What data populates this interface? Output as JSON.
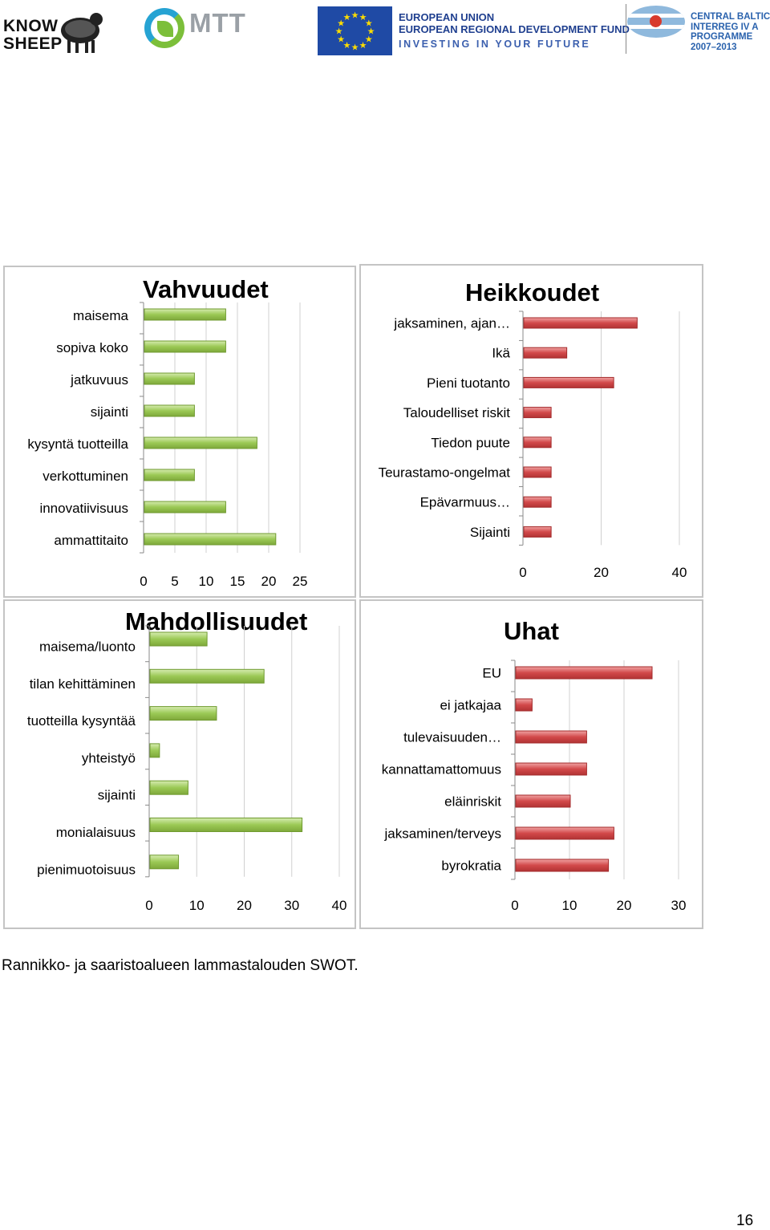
{
  "header": {
    "knowsheep": {
      "line1": "KNOW",
      "line2": "SHEEP"
    },
    "mtt": "MTT",
    "eu": {
      "line1": "EUROPEAN UNION",
      "line2": "EUROPEAN REGIONAL DEVELOPMENT FUND",
      "line3": "INVESTING IN YOUR FUTURE"
    },
    "cb": {
      "line1": "CENTRAL BALTIC",
      "line2": "INTERREG IV A",
      "line3": "PROGRAMME",
      "line4": "2007–2013"
    }
  },
  "colors": {
    "green_bar": "#9bc955",
    "green_edge": "#6f9a2f",
    "red_bar": "#d2494a",
    "red_edge": "#a32a2b"
  },
  "chart_data": [
    {
      "id": "vahvuudet",
      "type": "bar",
      "orientation": "horizontal",
      "title": "Vahvuudet",
      "categories": [
        "maisema",
        "sopiva koko",
        "jatkuvuus",
        "sijainti",
        "kysyntä tuotteilla",
        "verkottuminen",
        "innovatiivisuus",
        "ammattitaito"
      ],
      "values": [
        13,
        13,
        8,
        8,
        18,
        8,
        13,
        21
      ],
      "xlim": [
        0,
        25
      ],
      "xticks": [
        0,
        5,
        10,
        15,
        20,
        25
      ],
      "color": "#9bc955"
    },
    {
      "id": "heikkoudet",
      "type": "bar",
      "orientation": "horizontal",
      "title": "Heikkoudet",
      "categories": [
        "jaksaminen, ajan…",
        "Ikä",
        "Pieni tuotanto",
        "Taloudelliset riskit",
        "Tiedon puute",
        "Teurastamo-ongelmat",
        "Epävarmuus…",
        "Sijainti"
      ],
      "values": [
        29,
        11,
        23,
        7,
        7,
        7,
        7,
        7
      ],
      "xlim": [
        0,
        40
      ],
      "xticks": [
        0,
        20,
        40
      ],
      "color": "#d2494a"
    },
    {
      "id": "mahdollisuudet",
      "type": "bar",
      "orientation": "horizontal",
      "title": "Mahdollisuudet",
      "categories": [
        "maisema/luonto",
        "tilan kehittäminen",
        "tuotteilla kysyntää",
        "yhteistyö",
        "sijainti",
        "monialaisuus",
        "pienimuotoisuus"
      ],
      "values": [
        12,
        24,
        14,
        2,
        8,
        32,
        6
      ],
      "xlim": [
        0,
        40
      ],
      "xticks": [
        0,
        10,
        20,
        30,
        40
      ],
      "color": "#9bc955"
    },
    {
      "id": "uhat",
      "type": "bar",
      "orientation": "horizontal",
      "title": "Uhat",
      "categories": [
        "EU",
        "ei jatkajaa",
        "tulevaisuuden…",
        "kannattamattomuus",
        "eläinriskit",
        "jaksaminen/terveys",
        "byrokratia"
      ],
      "values": [
        25,
        3,
        13,
        13,
        10,
        18,
        17
      ],
      "xlim": [
        0,
        30
      ],
      "xticks": [
        0,
        10,
        20,
        30
      ],
      "color": "#d2494a"
    }
  ],
  "caption": "Rannikko- ja saaristoalueen lammastalouden SWOT.",
  "page_number": "16"
}
